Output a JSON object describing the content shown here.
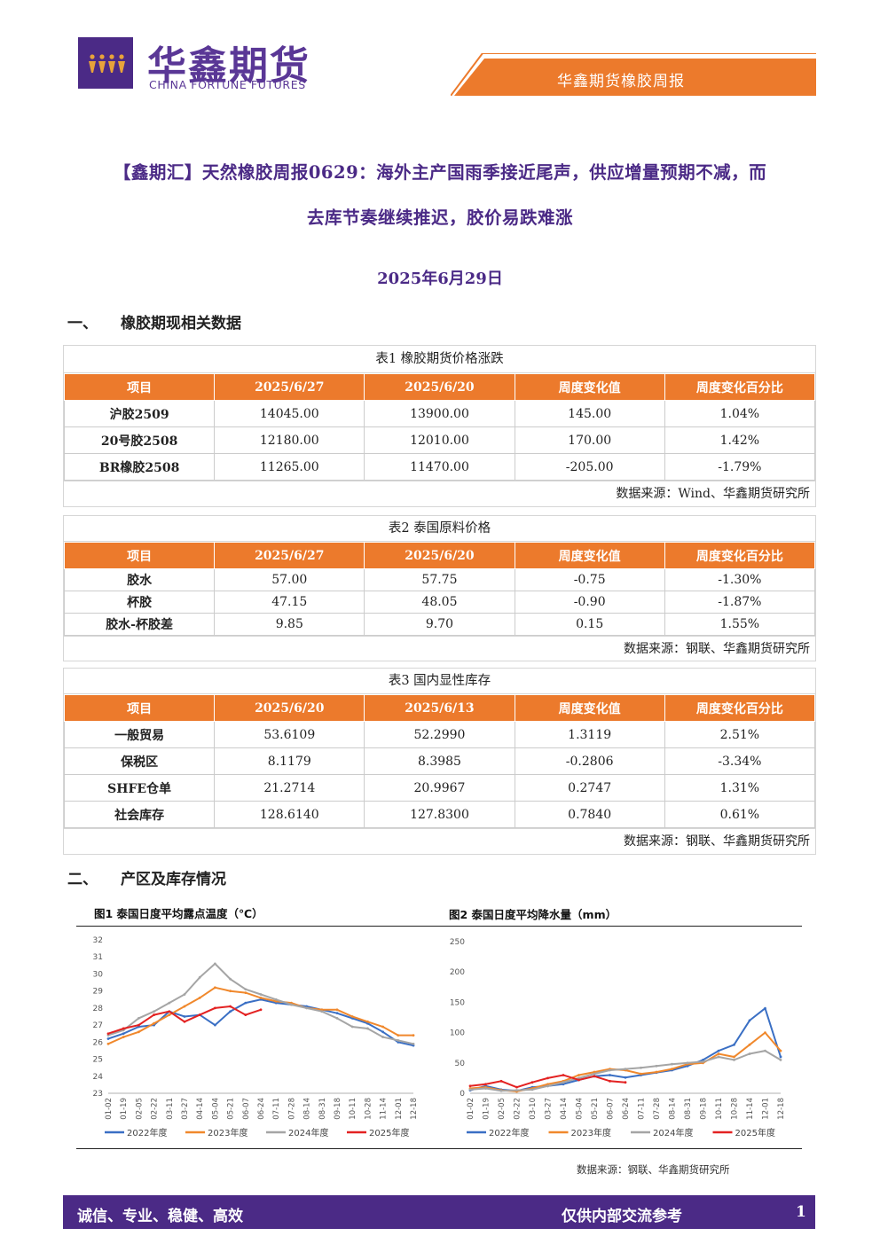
{
  "header": {
    "logo_cn": "华鑫期货",
    "logo_en": "CHINA FORTUNE FUTURES",
    "report_label": "华鑫期货橡胶周报",
    "colors": {
      "purple": "#4b2a86",
      "orange": "#ec7a2c"
    }
  },
  "title_line1": "【鑫期汇】天然橡胶周报0629：海外主产国雨季接近尾声，供应增量预期不减，而",
  "title_line2": "去库节奏继续推迟，胶价易跌难涨",
  "date": "2025年6月29日",
  "section1": {
    "num": "一、",
    "title": "橡胶期现相关数据"
  },
  "section2": {
    "num": "二、",
    "title": "产区及库存情况"
  },
  "tables": [
    {
      "caption": "表1  橡胶期货价格涨跌",
      "headers": [
        "项目",
        "2025/6/27",
        "2025/6/20",
        "周度变化值",
        "周度变化百分比"
      ],
      "rows": [
        [
          "沪胶2509",
          "14045.00",
          "13900.00",
          "145.00",
          "1.04%"
        ],
        [
          "20号胶2508",
          "12180.00",
          "12010.00",
          "170.00",
          "1.42%"
        ],
        [
          "BR橡胶2508",
          "11265.00",
          "11470.00",
          "-205.00",
          "-1.79%"
        ]
      ],
      "source": "数据来源：Wind、华鑫期货研究所"
    },
    {
      "caption": "表2  泰国原料价格",
      "headers": [
        "项目",
        "2025/6/27",
        "2025/6/20",
        "周度变化值",
        "周度变化百分比"
      ],
      "rows": [
        [
          "胶水",
          "57.00",
          "57.75",
          "-0.75",
          "-1.30%"
        ],
        [
          "杯胶",
          "47.15",
          "48.05",
          "-0.90",
          "-1.87%"
        ],
        [
          "胶水-杯胶差",
          "9.85",
          "9.70",
          "0.15",
          "1.55%"
        ]
      ],
      "source": "数据来源：钢联、华鑫期货研究所"
    },
    {
      "caption": "表3  国内显性库存",
      "headers": [
        "项目",
        "2025/6/20",
        "2025/6/13",
        "周度变化值",
        "周度变化百分比"
      ],
      "rows": [
        [
          "一般贸易",
          "53.6109",
          "52.2990",
          "1.3119",
          "2.51%"
        ],
        [
          "保税区",
          "8.1179",
          "8.3985",
          "-0.2806",
          "-3.34%"
        ],
        [
          "SHFE仓单",
          "21.2714",
          "20.9967",
          "0.2747",
          "1.31%"
        ],
        [
          "社会库存",
          "128.6140",
          "127.8300",
          "0.7840",
          "0.61%"
        ]
      ],
      "source": "数据来源：钢联、华鑫期货研究所"
    }
  ],
  "chart_data": [
    {
      "type": "line",
      "title": "图1  泰国日度平均露点温度（℃）",
      "x_ticks": [
        "01-02",
        "01-19",
        "02-05",
        "02-22",
        "03-11",
        "03-27",
        "04-14",
        "05-04",
        "05-21",
        "06-07",
        "06-24",
        "07-11",
        "07-28",
        "08-14",
        "08-31",
        "09-18",
        "10-11",
        "10-28",
        "11-14",
        "12-01",
        "12-18"
      ],
      "ylim": [
        23,
        32
      ],
      "y_ticks": [
        23,
        24,
        25,
        26,
        27,
        28,
        29,
        30,
        31,
        32
      ],
      "series": [
        {
          "name": "2022年度",
          "color": "#3a6fc4",
          "values": [
            26.2,
            26.5,
            26.9,
            27.0,
            27.8,
            27.5,
            27.6,
            27.0,
            27.8,
            28.3,
            28.5,
            28.3,
            28.2,
            28.1,
            27.9,
            27.7,
            27.4,
            27.1,
            26.6,
            26.0,
            25.8
          ]
        },
        {
          "name": "2023年度",
          "color": "#f0882c",
          "values": [
            25.9,
            26.3,
            26.6,
            27.1,
            27.6,
            28.1,
            28.6,
            29.2,
            29.0,
            28.9,
            28.6,
            28.4,
            28.3,
            28.0,
            27.9,
            27.9,
            27.5,
            27.2,
            26.9,
            26.4,
            26.4
          ]
        },
        {
          "name": "2024年度",
          "color": "#a5a5a5",
          "values": [
            26.4,
            26.7,
            27.4,
            27.8,
            28.3,
            28.8,
            29.8,
            30.6,
            29.7,
            29.1,
            28.8,
            28.5,
            28.2,
            28.0,
            27.8,
            27.4,
            26.9,
            26.8,
            26.3,
            26.1,
            25.9
          ]
        },
        {
          "name": "2025年度",
          "color": "#e32222",
          "values": [
            26.5,
            26.8,
            27.0,
            27.6,
            27.8,
            27.2,
            27.6,
            28.0,
            28.1,
            27.6,
            27.9,
            null,
            null,
            null,
            null,
            null,
            null,
            null,
            null,
            null,
            null
          ]
        }
      ]
    },
    {
      "type": "line",
      "title": "图2  泰国日度平均降水量（mm）",
      "x_ticks": [
        "01-02",
        "01-19",
        "02-05",
        "02-22",
        "03-10",
        "03-27",
        "04-14",
        "05-04",
        "05-21",
        "06-07",
        "06-24",
        "07-11",
        "07-28",
        "08-14",
        "08-31",
        "09-18",
        "10-11",
        "10-28",
        "11-14",
        "12-01",
        "12-18"
      ],
      "ylim": [
        0,
        250
      ],
      "y_ticks": [
        0,
        50,
        100,
        150,
        200,
        250
      ],
      "series": [
        {
          "name": "2022年度",
          "color": "#3a6fc4",
          "values": [
            5,
            12,
            6,
            4,
            10,
            12,
            15,
            22,
            28,
            30,
            26,
            30,
            34,
            38,
            45,
            55,
            70,
            80,
            120,
            140,
            60
          ]
        },
        {
          "name": "2023年度",
          "color": "#f0882c",
          "values": [
            8,
            10,
            5,
            3,
            8,
            15,
            20,
            30,
            35,
            40,
            38,
            32,
            35,
            40,
            48,
            50,
            65,
            60,
            80,
            100,
            70
          ]
        },
        {
          "name": "2024年度",
          "color": "#a5a5a5",
          "values": [
            6,
            8,
            4,
            5,
            6,
            12,
            18,
            25,
            32,
            38,
            40,
            42,
            45,
            48,
            50,
            52,
            60,
            55,
            65,
            70,
            55
          ]
        },
        {
          "name": "2025年度",
          "color": "#e32222",
          "values": [
            12,
            15,
            20,
            10,
            18,
            25,
            30,
            22,
            28,
            20,
            18,
            null,
            null,
            null,
            null,
            null,
            null,
            null,
            null,
            null,
            null
          ]
        }
      ]
    }
  ],
  "chart_source": "数据来源：钢联、华鑫期货研究所",
  "footer": {
    "left": "诚信、专业、稳健、高效",
    "right": "仅供内部交流参考",
    "page": "1"
  }
}
